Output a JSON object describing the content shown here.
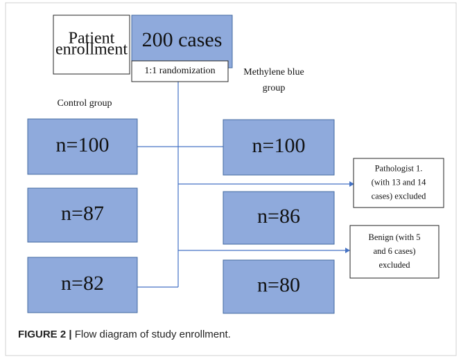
{
  "nodes": [
    {
      "id": "enroll",
      "lines": [
        "Patient",
        "enrollment"
      ]
    },
    {
      "id": "cases",
      "lines": [
        "200 cases"
      ]
    },
    {
      "id": "rand",
      "lines": [
        "1:1 randomization"
      ]
    },
    {
      "id": "c1",
      "lines": [
        "n=100"
      ]
    },
    {
      "id": "c2",
      "lines": [
        "n=87"
      ]
    },
    {
      "id": "c3",
      "lines": [
        "n=82"
      ]
    },
    {
      "id": "m1",
      "lines": [
        "n=100"
      ]
    },
    {
      "id": "m2",
      "lines": [
        "n=86"
      ]
    },
    {
      "id": "m3",
      "lines": [
        "n=80"
      ]
    },
    {
      "id": "ex1",
      "lines": [
        "Pathologist 1.",
        "(with 13 and 14",
        "cases) excluded"
      ]
    },
    {
      "id": "ex2",
      "lines": [
        "Benign (with 5",
        "and 6 cases)",
        "excluded"
      ]
    }
  ],
  "group_labels": {
    "control": [
      "Control group"
    ],
    "methylene": [
      "Methylene blue",
      "group"
    ]
  },
  "caption": {
    "label": "FIGURE 2 |",
    "text": " Flow diagram of study enrollment."
  }
}
